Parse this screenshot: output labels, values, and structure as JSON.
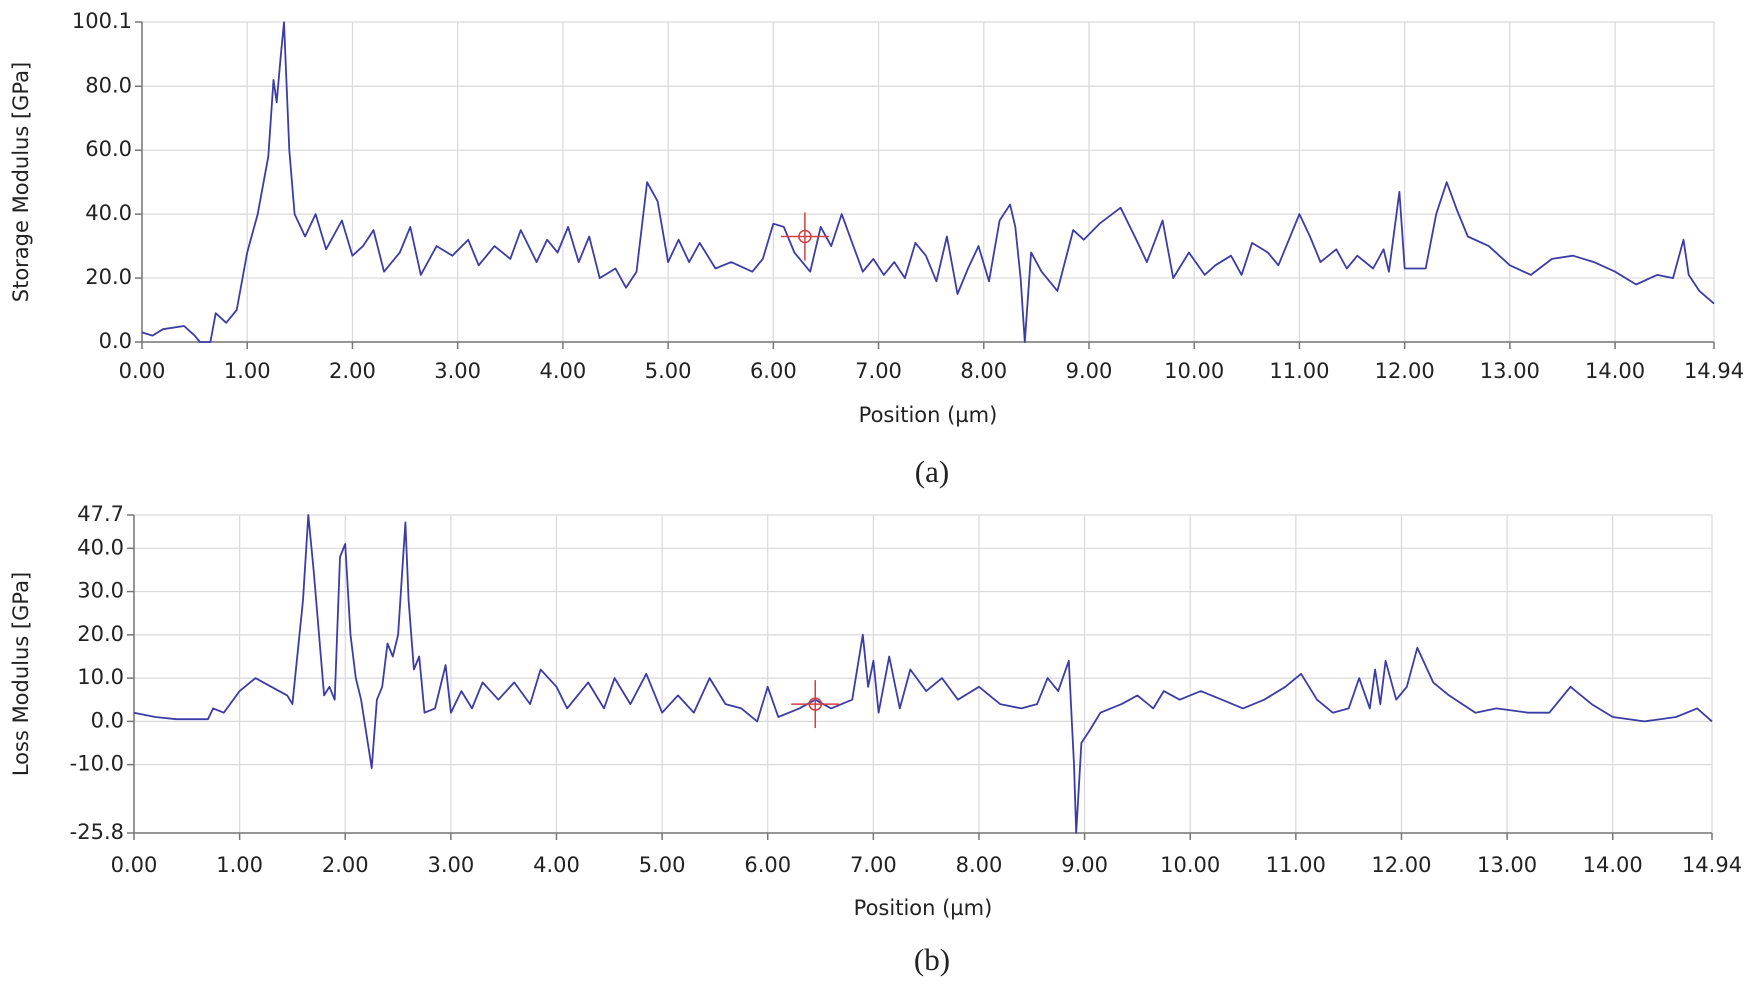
{
  "chart_data": [
    {
      "type": "line",
      "y_label": "Storage Modulus [GPa]",
      "x_label": "Position (µm)",
      "caption": "(a)",
      "color": "#3c3ca6",
      "grid": true,
      "xlim": [
        0,
        14.94
      ],
      "ylim": [
        0,
        100.1
      ],
      "xticks": [
        {
          "value": 0,
          "label": "0.00"
        },
        {
          "value": 1,
          "label": "1.00"
        },
        {
          "value": 2,
          "label": "2.00"
        },
        {
          "value": 3,
          "label": "3.00"
        },
        {
          "value": 4,
          "label": "4.00"
        },
        {
          "value": 5,
          "label": "5.00"
        },
        {
          "value": 6,
          "label": "6.00"
        },
        {
          "value": 7,
          "label": "7.00"
        },
        {
          "value": 8,
          "label": "8.00"
        },
        {
          "value": 9,
          "label": "9.00"
        },
        {
          "value": 10,
          "label": "10.00"
        },
        {
          "value": 11,
          "label": "11.00"
        },
        {
          "value": 12,
          "label": "12.00"
        },
        {
          "value": 13,
          "label": "13.00"
        },
        {
          "value": 14,
          "label": "14.00"
        },
        {
          "value": 14.94,
          "label": "14.94"
        }
      ],
      "yticks": [
        {
          "value": 0,
          "label": "0.0"
        },
        {
          "value": 20,
          "label": "20.0"
        },
        {
          "value": 40,
          "label": "40.0"
        },
        {
          "value": 60,
          "label": "60.0"
        },
        {
          "value": 80,
          "label": "80.0"
        },
        {
          "value": 100.1,
          "label": "100.1"
        }
      ],
      "cursor": {
        "x": 6.3,
        "y": 33
      },
      "x": [
        0,
        0.1,
        0.2,
        0.4,
        0.5,
        0.55,
        0.65,
        0.7,
        0.8,
        0.9,
        1.0,
        1.1,
        1.2,
        1.25,
        1.28,
        1.32,
        1.35,
        1.4,
        1.45,
        1.55,
        1.65,
        1.75,
        1.9,
        2.0,
        2.1,
        2.2,
        2.3,
        2.45,
        2.55,
        2.65,
        2.8,
        2.95,
        3.1,
        3.2,
        3.35,
        3.5,
        3.6,
        3.75,
        3.85,
        3.95,
        4.05,
        4.15,
        4.25,
        4.35,
        4.5,
        4.6,
        4.7,
        4.8,
        4.9,
        5.0,
        5.1,
        5.2,
        5.3,
        5.45,
        5.6,
        5.8,
        5.9,
        6.0,
        6.1,
        6.2,
        6.35,
        6.45,
        6.55,
        6.65,
        6.75,
        6.85,
        6.95,
        7.05,
        7.15,
        7.25,
        7.35,
        7.45,
        7.55,
        7.65,
        7.75,
        7.85,
        7.95,
        8.05,
        8.15,
        8.25,
        8.3,
        8.35,
        8.39,
        8.45,
        8.55,
        8.7,
        8.85,
        8.95,
        9.1,
        9.3,
        9.45,
        9.55,
        9.7,
        9.8,
        9.95,
        10.1,
        10.2,
        10.35,
        10.45,
        10.55,
        10.7,
        10.8,
        11.0,
        11.1,
        11.2,
        11.35,
        11.45,
        11.55,
        11.7,
        11.8,
        11.85,
        11.95,
        12.0,
        12.2,
        12.3,
        12.4,
        12.5,
        12.6,
        12.8,
        13.0,
        13.2,
        13.4,
        13.6,
        13.8,
        14.0,
        14.2,
        14.4,
        14.55,
        14.65,
        14.7,
        14.8,
        14.94
      ],
      "values": [
        3,
        2,
        4,
        5,
        2,
        0,
        0,
        9,
        6,
        10,
        28,
        40,
        58,
        82,
        75,
        90,
        100,
        60,
        40,
        33,
        40,
        29,
        38,
        27,
        30,
        35,
        22,
        28,
        36,
        21,
        30,
        27,
        32,
        24,
        30,
        26,
        35,
        25,
        32,
        28,
        36,
        25,
        33,
        20,
        23,
        17,
        22,
        50,
        44,
        25,
        32,
        25,
        31,
        23,
        25,
        22,
        26,
        37,
        36,
        28,
        22,
        36,
        30,
        40,
        31,
        22,
        26,
        21,
        25,
        20,
        31,
        27,
        19,
        33,
        15,
        23,
        30,
        19,
        38,
        43,
        36,
        20,
        0,
        28,
        22,
        16,
        35,
        32,
        37,
        42,
        32,
        25,
        38,
        20,
        28,
        21,
        24,
        27,
        21,
        31,
        28,
        24,
        40,
        33,
        25,
        29,
        23,
        27,
        23,
        29,
        22,
        47,
        23,
        23,
        40,
        50,
        41,
        33,
        30,
        24,
        21,
        26,
        27,
        25,
        22,
        18,
        21,
        20,
        32,
        21,
        16,
        12
      ]
    },
    {
      "type": "line",
      "y_label": "Loss Modulus [GPa]",
      "x_label": "Position (µm)",
      "caption": "(b)",
      "color": "#3c3ca6",
      "grid": true,
      "xlim": [
        0,
        14.94
      ],
      "ylim": [
        -25.8,
        47.7
      ],
      "xticks": [
        {
          "value": 0,
          "label": "0.00"
        },
        {
          "value": 1,
          "label": "1.00"
        },
        {
          "value": 2,
          "label": "2.00"
        },
        {
          "value": 3,
          "label": "3.00"
        },
        {
          "value": 4,
          "label": "4.00"
        },
        {
          "value": 5,
          "label": "5.00"
        },
        {
          "value": 6,
          "label": "6.00"
        },
        {
          "value": 7,
          "label": "7.00"
        },
        {
          "value": 8,
          "label": "8.00"
        },
        {
          "value": 9,
          "label": "9.00"
        },
        {
          "value": 10,
          "label": "10.00"
        },
        {
          "value": 11,
          "label": "11.00"
        },
        {
          "value": 12,
          "label": "12.00"
        },
        {
          "value": 13,
          "label": "13.00"
        },
        {
          "value": 14,
          "label": "14.00"
        },
        {
          "value": 14.94,
          "label": "14.94"
        }
      ],
      "yticks": [
        {
          "value": -25.8,
          "label": "-25.8"
        },
        {
          "value": -10,
          "label": "-10.0"
        },
        {
          "value": 0,
          "label": "0.0"
        },
        {
          "value": 10,
          "label": "10.0"
        },
        {
          "value": 20,
          "label": "20.0"
        },
        {
          "value": 30,
          "label": "30.0"
        },
        {
          "value": 40,
          "label": "40.0"
        },
        {
          "value": 47.7,
          "label": "47.7"
        }
      ],
      "cursor": {
        "x": 6.45,
        "y": 4
      },
      "x": [
        0,
        0.2,
        0.4,
        0.7,
        0.75,
        0.85,
        1.0,
        1.15,
        1.3,
        1.45,
        1.5,
        1.6,
        1.65,
        1.7,
        1.8,
        1.85,
        1.9,
        1.95,
        2.0,
        2.05,
        2.1,
        2.15,
        2.25,
        2.3,
        2.35,
        2.4,
        2.45,
        2.5,
        2.57,
        2.6,
        2.65,
        2.7,
        2.75,
        2.85,
        2.95,
        3.0,
        3.1,
        3.2,
        3.3,
        3.45,
        3.6,
        3.75,
        3.85,
        4.0,
        4.1,
        4.3,
        4.45,
        4.55,
        4.7,
        4.85,
        5.0,
        5.15,
        5.3,
        5.45,
        5.6,
        5.75,
        5.9,
        6.0,
        6.1,
        6.3,
        6.45,
        6.6,
        6.8,
        6.9,
        6.95,
        7.0,
        7.05,
        7.15,
        7.25,
        7.35,
        7.5,
        7.65,
        7.8,
        8.0,
        8.2,
        8.4,
        8.55,
        8.65,
        8.75,
        8.85,
        8.9,
        8.92,
        8.97,
        9.05,
        9.15,
        9.35,
        9.5,
        9.65,
        9.75,
        9.9,
        10.1,
        10.3,
        10.5,
        10.7,
        10.9,
        11.05,
        11.2,
        11.35,
        11.5,
        11.6,
        11.7,
        11.75,
        11.8,
        11.85,
        11.95,
        12.05,
        12.15,
        12.3,
        12.45,
        12.7,
        12.9,
        13.2,
        13.4,
        13.6,
        13.8,
        14.0,
        14.3,
        14.6,
        14.8,
        14.94
      ],
      "values": [
        2,
        1,
        0.5,
        0.5,
        3,
        2,
        7,
        10,
        8,
        6,
        4,
        28,
        47.7,
        35,
        6,
        8,
        5,
        38,
        41,
        20,
        10,
        5,
        -10.8,
        5,
        8,
        18,
        15,
        20,
        46,
        28,
        12,
        15,
        2,
        3,
        13,
        2,
        7,
        3,
        9,
        5,
        9,
        4,
        12,
        8,
        3,
        9,
        3,
        10,
        4,
        11,
        2,
        6,
        2,
        10,
        4,
        3,
        0,
        8,
        1,
        3,
        5,
        3,
        5,
        20,
        8,
        14,
        2,
        15,
        3,
        12,
        7,
        10,
        5,
        8,
        4,
        3,
        4,
        10,
        7,
        14,
        -10,
        -25.8,
        -5,
        -2,
        2,
        4,
        6,
        3,
        7,
        5,
        7,
        5,
        3,
        5,
        8,
        11,
        5,
        2,
        3,
        10,
        3,
        12,
        4,
        14,
        5,
        8,
        17,
        9,
        6,
        2,
        3,
        2,
        2,
        8,
        4,
        1,
        0,
        1,
        3,
        0
      ]
    }
  ]
}
